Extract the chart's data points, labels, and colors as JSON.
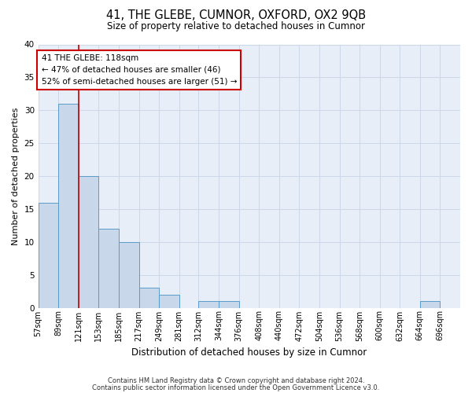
{
  "title": "41, THE GLEBE, CUMNOR, OXFORD, OX2 9QB",
  "subtitle": "Size of property relative to detached houses in Cumnor",
  "xlabel": "Distribution of detached houses by size in Cumnor",
  "ylabel": "Number of detached properties",
  "footnote1": "Contains HM Land Registry data © Crown copyright and database right 2024.",
  "footnote2": "Contains public sector information licensed under the Open Government Licence v3.0.",
  "bin_labels": [
    "57sqm",
    "89sqm",
    "121sqm",
    "153sqm",
    "185sqm",
    "217sqm",
    "249sqm",
    "281sqm",
    "312sqm",
    "344sqm",
    "376sqm",
    "408sqm",
    "440sqm",
    "472sqm",
    "504sqm",
    "536sqm",
    "568sqm",
    "600sqm",
    "632sqm",
    "664sqm",
    "696sqm"
  ],
  "bin_edges": [
    57,
    89,
    121,
    153,
    185,
    217,
    249,
    281,
    312,
    344,
    376,
    408,
    440,
    472,
    504,
    536,
    568,
    600,
    632,
    664,
    696,
    728
  ],
  "heights": [
    16,
    31,
    20,
    12,
    10,
    3,
    2,
    0,
    1,
    1,
    0,
    0,
    0,
    0,
    0,
    0,
    0,
    0,
    0,
    1,
    0
  ],
  "bar_color": "#c8d8ea",
  "bar_edge_color": "#5a9bc8",
  "bar_linewidth": 0.7,
  "red_line_x": 121,
  "annotation_line1": "41 THE GLEBE: 118sqm",
  "annotation_line2": "← 47% of detached houses are smaller (46)",
  "annotation_line3": "52% of semi-detached houses are larger (51) →",
  "annotation_box_color": "#ffffff",
  "annotation_box_edge": "#cc0000",
  "red_line_color": "#cc0000",
  "grid_color": "#ccd8e8",
  "bg_color": "#e8eef8",
  "ylim": [
    0,
    40
  ],
  "yticks": [
    0,
    5,
    10,
    15,
    20,
    25,
    30,
    35,
    40
  ],
  "title_fontsize": 10.5,
  "subtitle_fontsize": 8.5,
  "ylabel_fontsize": 8,
  "xlabel_fontsize": 8.5,
  "tick_fontsize": 7,
  "annot_fontsize": 7.5,
  "footnote_fontsize": 6
}
